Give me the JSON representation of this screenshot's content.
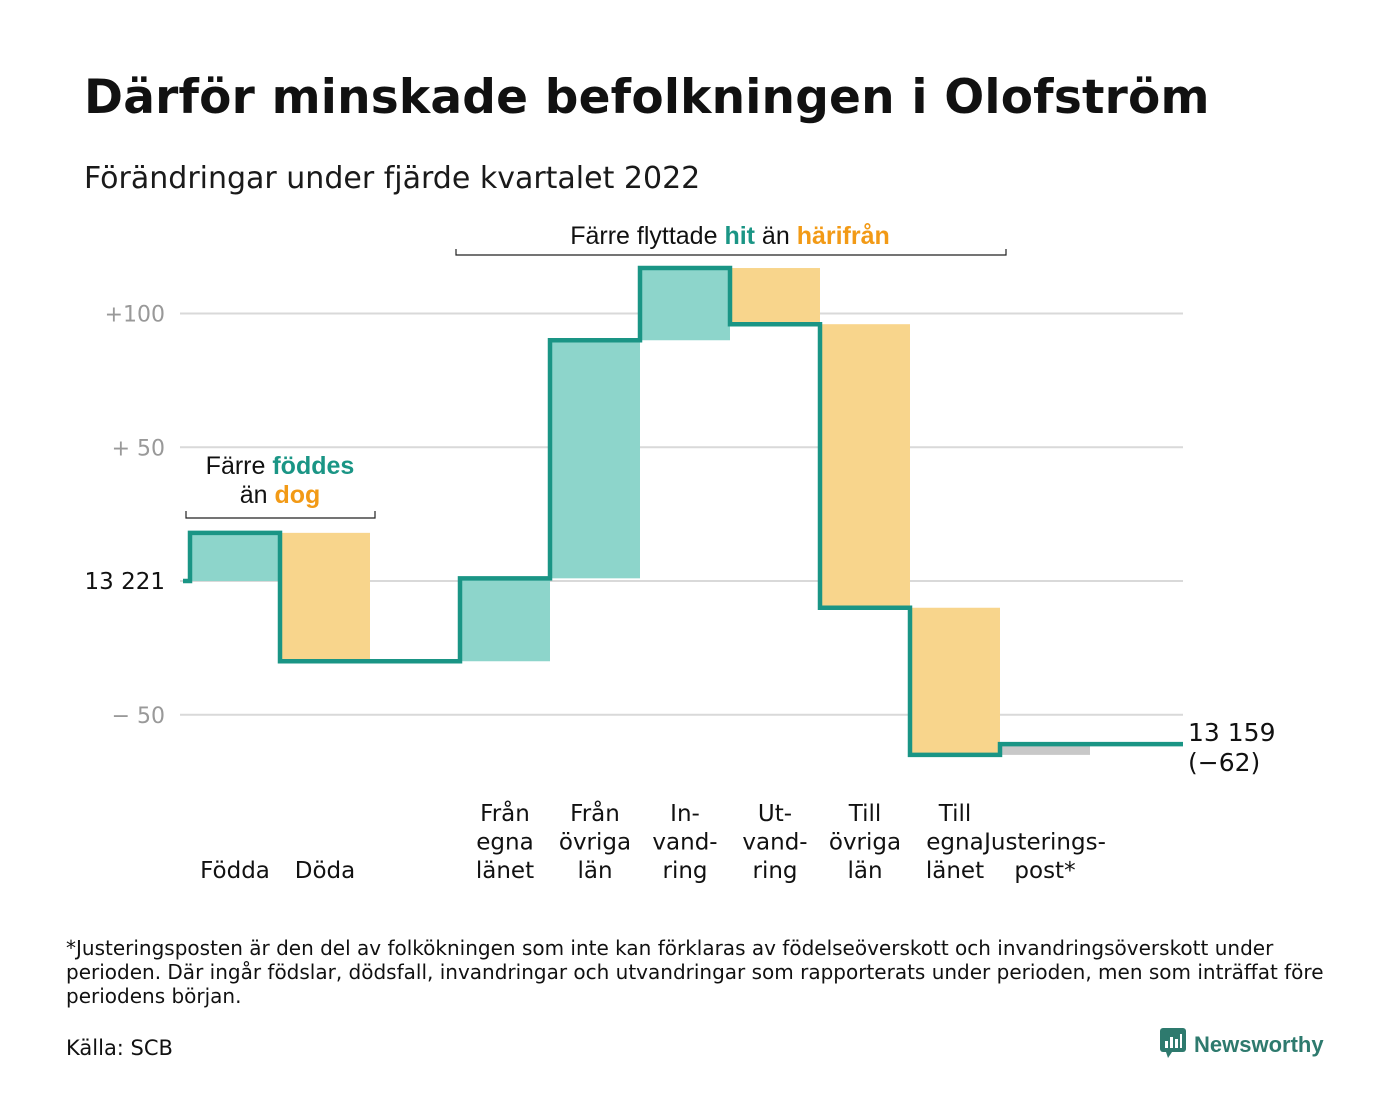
{
  "title": "Därför minskade befolkningen i Olofström",
  "subtitle": "Förändringar under fjärde kvartalet 2022",
  "footnote": "*Justeringsposten är den del av folkökningen som inte kan förklaras av födelseöverskott och invandringsöverskott under perioden. Där ingår födslar, dödsfall, invandringar och utvandringar som rapporterats under perioden, men som inträffat före periodens början.",
  "source": "Källa: SCB",
  "brand": "Newsworthy",
  "colors": {
    "increase": "#8dd5cb",
    "decrease": "#f8d58c",
    "adjustment": "#c8c8c8",
    "line": "#1a9585",
    "teal_text": "#1a9585",
    "orange_text": "#f29a16",
    "grid": "#d9d9d9",
    "axis_text": "#999999"
  },
  "chart_data": {
    "type": "waterfall",
    "start_label": "13 221",
    "end_label_1": "13 159",
    "end_label_2": "(−62)",
    "ytick_labels": [
      "+100",
      "+ 50",
      "− 50"
    ],
    "yticks": [
      100,
      50,
      -50
    ],
    "ylim": [
      -80,
      115
    ],
    "bars": [
      {
        "label_lines": [
          "Födda"
        ],
        "delta": 18,
        "kind": "increase"
      },
      {
        "label_lines": [
          "Döda"
        ],
        "delta": -48,
        "kind": "decrease"
      },
      {
        "label_lines": [],
        "delta": 0,
        "kind": "none"
      },
      {
        "label_lines": [
          "Från",
          "egna",
          "länet"
        ],
        "delta": 31,
        "kind": "increase"
      },
      {
        "label_lines": [
          "Från",
          "övriga",
          "län"
        ],
        "delta": 89,
        "kind": "increase"
      },
      {
        "label_lines": [
          "In-",
          "vand-",
          "ring"
        ],
        "delta": 27,
        "kind": "increase"
      },
      {
        "label_lines": [
          "Ut-",
          "vand-",
          "ring"
        ],
        "delta": -21,
        "kind": "decrease"
      },
      {
        "label_lines": [
          "Till",
          "övriga",
          "län"
        ],
        "delta": -106,
        "kind": "decrease"
      },
      {
        "label_lines": [
          "Till",
          "egna",
          "länet"
        ],
        "delta": -55,
        "kind": "decrease"
      },
      {
        "label_lines": [
          "Justerings-",
          "post*"
        ],
        "delta": 4,
        "kind": "adjustment"
      }
    ],
    "annotations": [
      {
        "parts": [
          {
            "text": "Färre ",
            "style": "plain"
          },
          {
            "text": "föddes",
            "style": "teal"
          }
        ],
        "line2": [
          {
            "text": "än ",
            "style": "plain"
          },
          {
            "text": "dog",
            "style": "orange"
          }
        ]
      },
      {
        "parts": [
          {
            "text": "Färre flyttade ",
            "style": "plain"
          },
          {
            "text": "hit",
            "style": "teal"
          },
          {
            "text": " än ",
            "style": "plain"
          },
          {
            "text": "härifrån",
            "style": "orange"
          }
        ]
      }
    ]
  }
}
